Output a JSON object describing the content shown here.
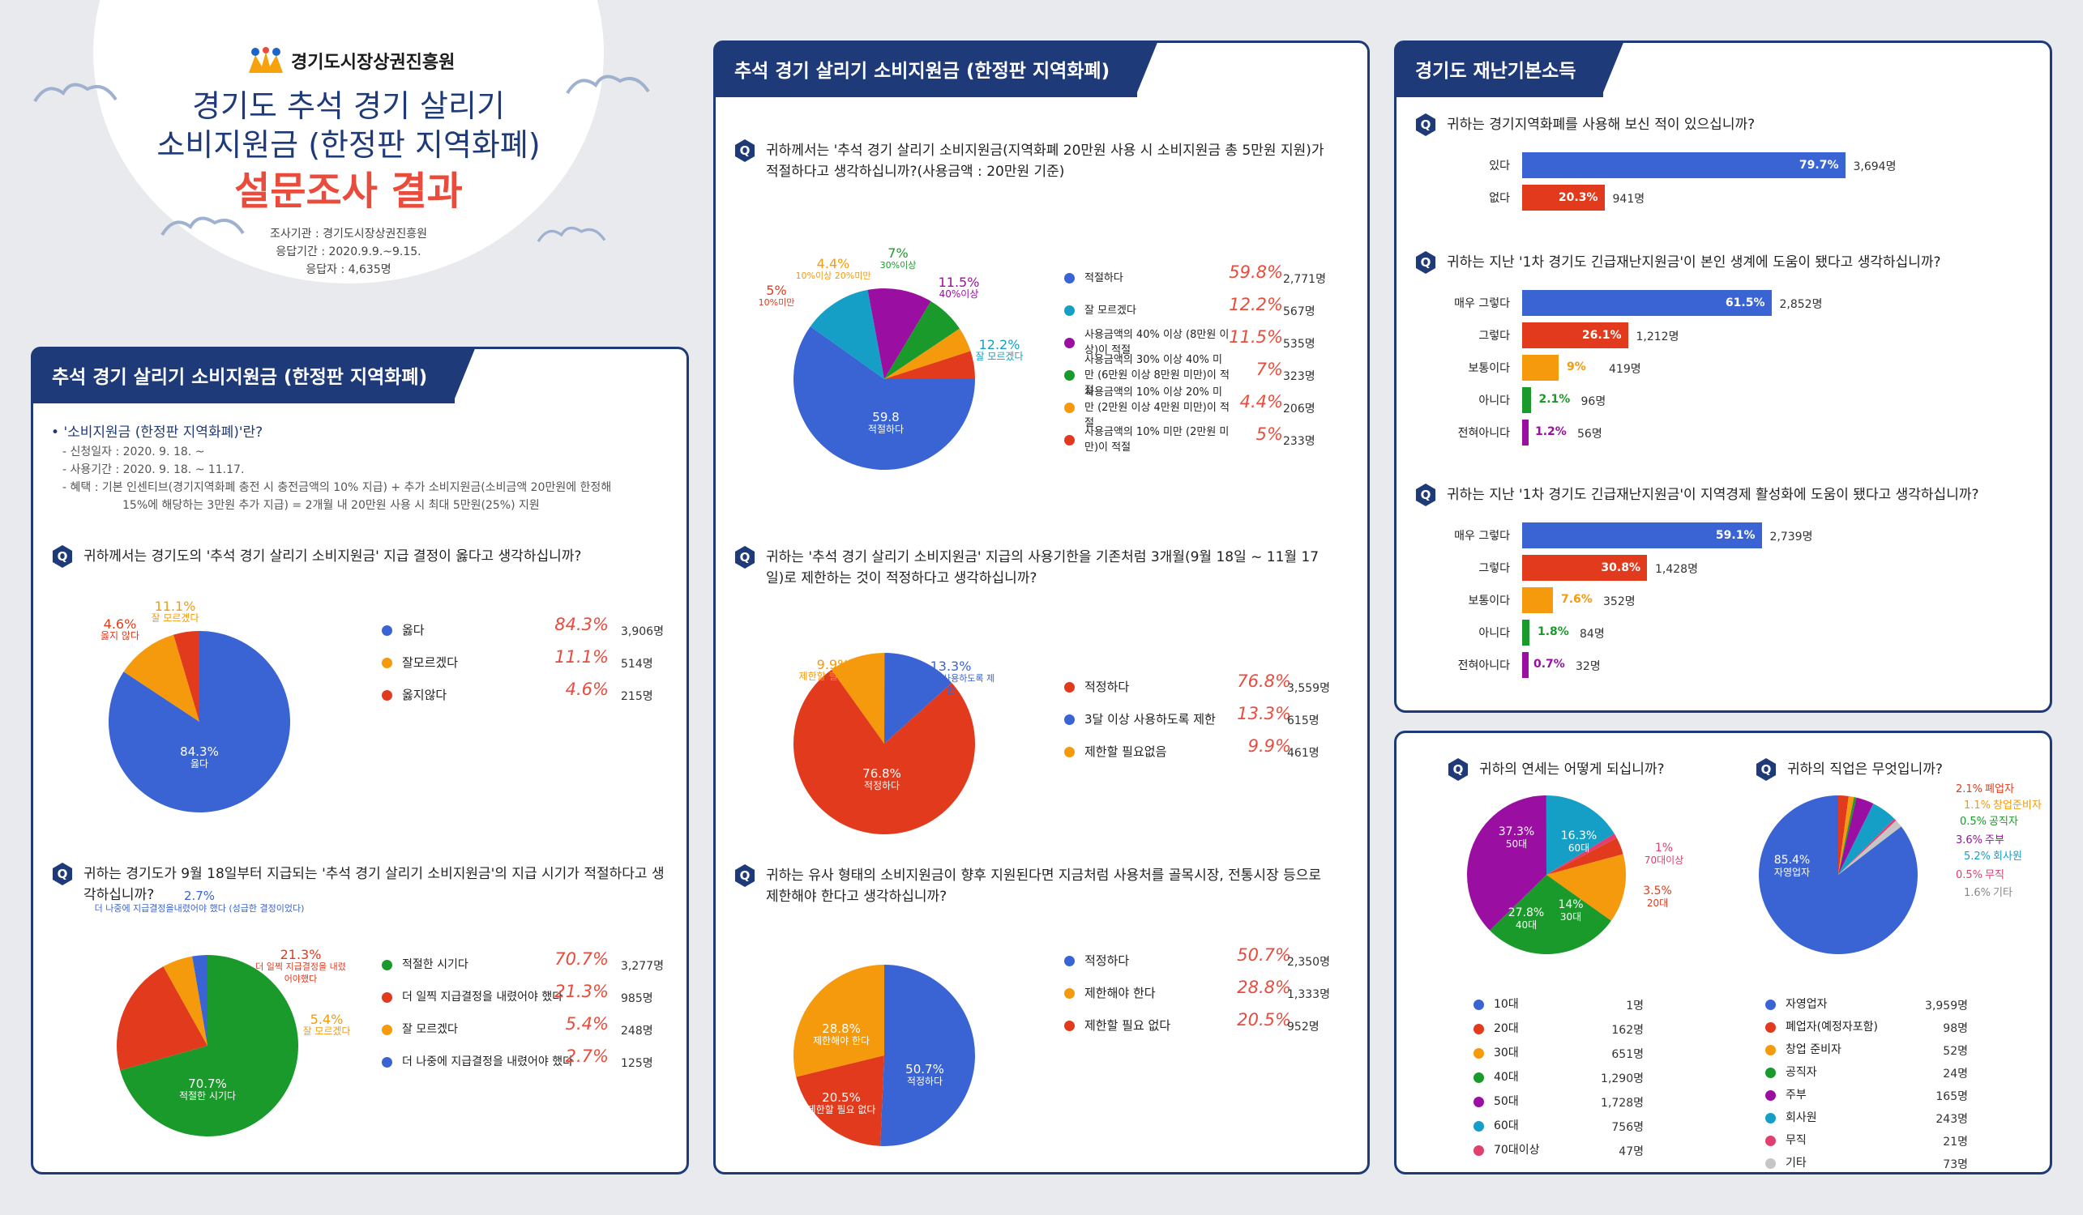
{
  "header": {
    "org": "경기도시장상권진흥원",
    "title1": "경기도 추석 경기 살리기",
    "title2": "소비지원금 (한정판 지역화폐)",
    "title3": "설문조사 결과",
    "info1": "조사기관 : 경기도시장상권진흥원",
    "info2": "응답기간 : 2020.9.9.~9.15.",
    "info3": "응답자 : 4,635명"
  },
  "left": {
    "title": "추석 경기 살리기 소비지원금 (한정판 지역화폐)",
    "info_title": "'소비지원금 (한정판 지역화폐)'란?",
    "info1": "- 신청일자 : 2020. 9. 18. ~",
    "info2": "- 사용기간 : 2020. 9. 18. ~ 11.17.",
    "info3": "- 혜택 : 기본 인센티브(경기지역화폐 충전 시 충전금액의 10% 지급) + 추가 소비지원금(소비금액 20만원에 한정해",
    "info4": "15%에 해당하는 3만원 추가 지급) = 2개월 내 20만원 사용 시 최대 5만원(25%) 지원"
  },
  "mid": {
    "title": "추석 경기 살리기 소비지원금 (한정판 지역화폐)"
  },
  "right": {
    "title": "경기도 재난기본소득"
  },
  "colors": {
    "blue": "#3a64d4",
    "red": "#e13a1c",
    "orange": "#f59a0c",
    "green": "#1a9a2a",
    "purple": "#9a0fa2",
    "teal": "#159fc6",
    "pink": "#e0406e",
    "gray": "#c6c6c6",
    "navy": "#1e3a78"
  },
  "chart_data": [
    {
      "id": "q1",
      "type": "pie",
      "question": "귀하께서는 경기도의 '추석 경기 살리기 소비지원금' 지급 결정이 옳다고 생각하십니까?",
      "slices": [
        {
          "label": "옳다",
          "pct": 84.3,
          "count": "3,906명",
          "pct_text": "84.3%",
          "slice_text": "84.3%",
          "slice_sub": "옳다",
          "color": "#3a64d4"
        },
        {
          "label": "잘모르겠다",
          "pct": 11.1,
          "count": "514명",
          "pct_text": "11.1%",
          "slice_text": "11.1%",
          "slice_sub": "잘 모르겠다",
          "color": "#f59a0c"
        },
        {
          "label": "옳지않다",
          "pct": 4.6,
          "count": "215명",
          "pct_text": "4.6%",
          "slice_text": "4.6%",
          "slice_sub": "옳지 않다",
          "color": "#e13a1c"
        }
      ]
    },
    {
      "id": "q2",
      "type": "pie",
      "question": "귀하는 경기도가 9월 18일부터 지급되는 '추석 경기 살리기 소비지원금'의 지급 시기가 적절하다고 생각하십니까?",
      "slices": [
        {
          "label": "적절한 시기다",
          "pct": 70.7,
          "count": "3,277명",
          "pct_text": "70.7%",
          "slice_text": "70.7%",
          "slice_sub": "적절한 시기다",
          "color": "#1a9a2a"
        },
        {
          "label": "더 일찍 지급결정을 내렸어야 했다",
          "pct": 21.3,
          "count": "985명",
          "pct_text": "21.3%",
          "slice_text": "21.3%",
          "slice_sub": "더 일찍 지급결정을 내렸어야했다",
          "color": "#e13a1c"
        },
        {
          "label": "잘 모르겠다",
          "pct": 5.4,
          "count": "248명",
          "pct_text": "5.4%",
          "slice_text": "5.4%",
          "slice_sub": "잘 모르겠다",
          "color": "#f59a0c"
        },
        {
          "label": "더 나중에 지급결정을 내렸어야 했다",
          "pct": 2.7,
          "count": "125명",
          "pct_text": "2.7%",
          "slice_text": "2.7%",
          "slice_sub": "더 나중에 지급결정을내렸어야 했다 (성급한 결정이었다)",
          "color": "#3a64d4"
        }
      ]
    },
    {
      "id": "q3",
      "type": "pie",
      "question": "귀하께서는 '추석 경기 살리기 소비지원금(지역화폐 20만원 사용 시 소비지원금 총 5만원 지원)가 적절하다고 생각하십니까?(사용금액 : 20만원 기준)",
      "slices": [
        {
          "label": "적절하다",
          "pct": 59.8,
          "count": "2,771명",
          "pct_text": "59.8%",
          "slice_text": "59.8",
          "slice_sub": "적절하다",
          "color": "#3a64d4"
        },
        {
          "label": "잘 모르겠다",
          "pct": 12.2,
          "count": "567명",
          "pct_text": "12.2%",
          "slice_text": "12.2%",
          "slice_sub": "잘 모르겠다",
          "color": "#159fc6"
        },
        {
          "label": "사용금액의 40% 이상 (8만원 이상)이 적절",
          "pct": 11.5,
          "count": "535명",
          "pct_text": "11.5%",
          "slice_text": "11.5%",
          "slice_sub": "40%이상",
          "color": "#9a0fa2"
        },
        {
          "label": "사용금액의 30% 이상 40% 미만 (6만원 이상 8만원 미만)이 적절",
          "pct": 7,
          "count": "323명",
          "pct_text": "7%",
          "slice_text": "7%",
          "slice_sub": "30%이상",
          "color": "#1a9a2a"
        },
        {
          "label": "사용금액의 10% 이상 20% 미만 (2만원 이상 4만원 미만)이 적절",
          "pct": 4.4,
          "count": "206명",
          "pct_text": "4.4%",
          "slice_text": "4.4%",
          "slice_sub": "10%이상 20%미만",
          "color": "#f59a0c"
        },
        {
          "label": "사용금액의 10% 미만 (2만원 미만)이 적절",
          "pct": 5,
          "count": "233명",
          "pct_text": "5%",
          "slice_text": "5%",
          "slice_sub": "10%미만",
          "color": "#e13a1c"
        }
      ]
    },
    {
      "id": "q4",
      "type": "pie",
      "question": "귀하는 '추석 경기 살리기 소비지원금' 지급의 사용기한을 기존처럼 3개월(9월 18일 ~ 11월 17일)로 제한하는 것이 적정하다고 생각하십니까?",
      "slices": [
        {
          "label": "적정하다",
          "pct": 76.8,
          "count": "3,559명",
          "pct_text": "76.8%",
          "slice_text": "76.8%",
          "slice_sub": "적정하다",
          "color": "#e13a1c"
        },
        {
          "label": "제한할 필요없음",
          "pct": 9.9,
          "count": "461명",
          "pct_text": "9.9%",
          "slice_text": "9.9%",
          "slice_sub": "제한할 필요 없음",
          "color": "#f59a0c"
        },
        {
          "label": "3달 이상 사용하도록 제한",
          "pct": 13.3,
          "count": "615명",
          "pct_text": "13.3%",
          "slice_text": "13.3%",
          "slice_sub": "3달 이상 사용하도록 제한",
          "color": "#3a64d4"
        }
      ]
    },
    {
      "id": "q5",
      "type": "pie",
      "question": "귀하는 유사 형태의 소비지원금이 향후 지원된다면 지금처럼 사용처를 골목시장, 전통시장 등으로 제한해야 한다고 생각하십니까?",
      "slices": [
        {
          "label": "적정하다",
          "pct": 50.7,
          "count": "2,350명",
          "pct_text": "50.7%",
          "slice_text": "50.7%",
          "slice_sub": "적정하다",
          "color": "#3a64d4"
        },
        {
          "label": "제한할 필요 없다",
          "pct": 20.5,
          "count": "952명",
          "pct_text": "20.5%",
          "slice_text": "20.5%",
          "slice_sub": "제한할 필요 없다",
          "color": "#e13a1c"
        },
        {
          "label": "제한해야 한다",
          "pct": 28.8,
          "count": "1,333명",
          "pct_text": "28.8%",
          "slice_text": "28.8%",
          "slice_sub": "제한해야 한다",
          "color": "#f59a0c"
        }
      ]
    },
    {
      "id": "q6",
      "type": "bar",
      "question": "귀하는 경기지역화폐를 사용해 보신 적이 있으십니까?",
      "bars": [
        {
          "label": "있다",
          "pct": 79.7,
          "pct_text": "79.7%",
          "count": "3,694명",
          "color": "#3a64d4"
        },
        {
          "label": "없다",
          "pct": 20.3,
          "pct_text": "20.3%",
          "count": "941명",
          "color": "#e13a1c"
        }
      ]
    },
    {
      "id": "q7",
      "type": "bar",
      "question": "귀하는 지난 '1차 경기도 긴급재난지원금'이 본인 생계에 도움이 됐다고 생각하십니까?",
      "bars": [
        {
          "label": "매우 그렇다",
          "pct": 61.5,
          "pct_text": "61.5%",
          "count": "2,852명",
          "color": "#3a64d4"
        },
        {
          "label": "그렇다",
          "pct": 26.1,
          "pct_text": "26.1%",
          "count": "1,212명",
          "color": "#e13a1c"
        },
        {
          "label": "보통이다",
          "pct": 9,
          "pct_text": "9%",
          "count": "419명",
          "color": "#f59a0c"
        },
        {
          "label": "아니다",
          "pct": 2.1,
          "pct_text": "2.1%",
          "count": "96명",
          "color": "#1a9a2a"
        },
        {
          "label": "전혀아니다",
          "pct": 1.2,
          "pct_text": "1.2%",
          "count": "56명",
          "color": "#9a0fa2"
        }
      ]
    },
    {
      "id": "q8",
      "type": "bar",
      "question": "귀하는 지난 '1차 경기도 긴급재난지원금'이 지역경제 활성화에 도움이 됐다고 생각하십니까?",
      "bars": [
        {
          "label": "매우 그렇다",
          "pct": 59.1,
          "pct_text": "59.1%",
          "count": "2,739명",
          "color": "#3a64d4"
        },
        {
          "label": "그렇다",
          "pct": 30.8,
          "pct_text": "30.8%",
          "count": "1,428명",
          "color": "#e13a1c"
        },
        {
          "label": "보통이다",
          "pct": 7.6,
          "pct_text": "7.6%",
          "count": "352명",
          "color": "#f59a0c"
        },
        {
          "label": "아니다",
          "pct": 1.8,
          "pct_text": "1.8%",
          "count": "84명",
          "color": "#1a9a2a"
        },
        {
          "label": "전혀아니다",
          "pct": 0.7,
          "pct_text": "0.7%",
          "count": "32명",
          "color": "#9a0fa2"
        }
      ]
    },
    {
      "id": "q9",
      "type": "pie",
      "question": "귀하의 연세는 어떻게 되십니까?",
      "slices": [
        {
          "label": "60대",
          "pct": 16.3,
          "count": "756명",
          "pct_text": "16.3%",
          "color": "#159fc6"
        },
        {
          "label": "70대이상",
          "pct": 1,
          "count": "47명",
          "pct_text": "1%",
          "color": "#e0406e"
        },
        {
          "label": "20대",
          "pct": 3.5,
          "count": "162명",
          "pct_text": "3.5%",
          "color": "#e13a1c"
        },
        {
          "label": "30대",
          "pct": 14,
          "count": "651명",
          "pct_text": "14%",
          "color": "#f59a0c"
        },
        {
          "label": "40대",
          "pct": 27.8,
          "count": "1,290명",
          "pct_text": "27.8%",
          "color": "#1a9a2a"
        },
        {
          "label": "50대",
          "pct": 37.3,
          "count": "1,728명",
          "pct_text": "37.3%",
          "color": "#9a0fa2"
        },
        {
          "label": "10대",
          "pct": 0.02,
          "count": "1명",
          "pct_text": "",
          "color": "#3a64d4"
        }
      ],
      "legend_order": [
        "10대",
        "20대",
        "30대",
        "40대",
        "50대",
        "60대",
        "70대이상"
      ]
    },
    {
      "id": "q10",
      "type": "pie",
      "question": "귀하의 직업은 무엇입니까?",
      "slices": [
        {
          "label": "폐업자",
          "legend": "폐업자(예정자포함)",
          "pct": 2.1,
          "count": "98명",
          "pct_text": "2.1%",
          "color": "#e13a1c"
        },
        {
          "label": "창업준비자",
          "legend": "창업 준비자",
          "pct": 1.1,
          "count": "52명",
          "pct_text": "1.1%",
          "color": "#f59a0c"
        },
        {
          "label": "공직자",
          "legend": "공직자",
          "pct": 0.5,
          "count": "24명",
          "pct_text": "0.5%",
          "color": "#1a9a2a"
        },
        {
          "label": "주부",
          "legend": "주부",
          "pct": 3.6,
          "count": "165명",
          "pct_text": "3.6%",
          "color": "#9a0fa2"
        },
        {
          "label": "회사원",
          "legend": "회사원",
          "pct": 5.2,
          "count": "243명",
          "pct_text": "5.2%",
          "color": "#159fc6"
        },
        {
          "label": "무직",
          "legend": "무직",
          "pct": 0.5,
          "count": "21명",
          "pct_text": "0.5%",
          "color": "#e0406e"
        },
        {
          "label": "기타",
          "legend": "기타",
          "pct": 1.6,
          "count": "73명",
          "pct_text": "1.6%",
          "color": "#c6c6c6"
        },
        {
          "label": "자영업자",
          "legend": "자영업자",
          "pct": 85.4,
          "count": "3,959명",
          "pct_text": "85.4%",
          "color": "#3a64d4"
        }
      ]
    }
  ]
}
